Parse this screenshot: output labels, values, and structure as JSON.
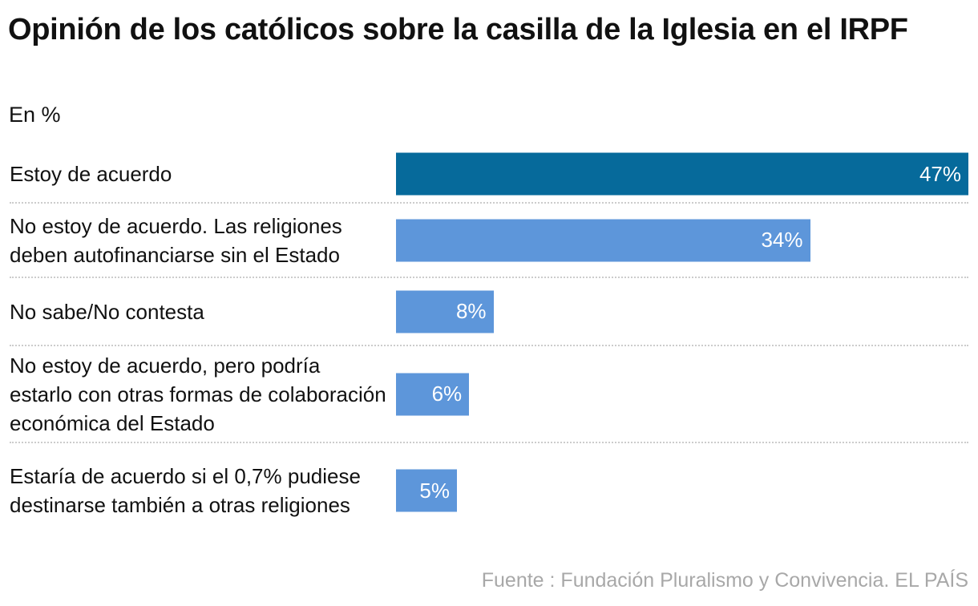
{
  "chart_data": {
    "type": "bar",
    "orientation": "horizontal",
    "title": "Opinión de los católicos sobre la casilla de la Iglesia en el IRPF",
    "subtitle": "En %",
    "categories": [
      "Estoy de acuerdo",
      "No estoy de acuerdo. Las religiones deben autofinanciarse sin el Estado",
      "No sabe/No contesta",
      "No estoy de acuerdo, pero podría estarlo con otras formas de colaboración económica del Estado",
      "Estaría de acuerdo si el 0,7% pudiese destinarse también a otras religiones"
    ],
    "values": [
      47,
      34,
      8,
      6,
      5
    ],
    "data_labels": [
      "47%",
      "34%",
      "8%",
      "6%",
      "5%"
    ],
    "colors": [
      "#066a9b",
      "#5d96da",
      "#5d96da",
      "#5d96da",
      "#5d96da"
    ],
    "grid": false,
    "source": "Fuente : Fundación Pluralismo y Convivencia. EL PAÍS"
  }
}
